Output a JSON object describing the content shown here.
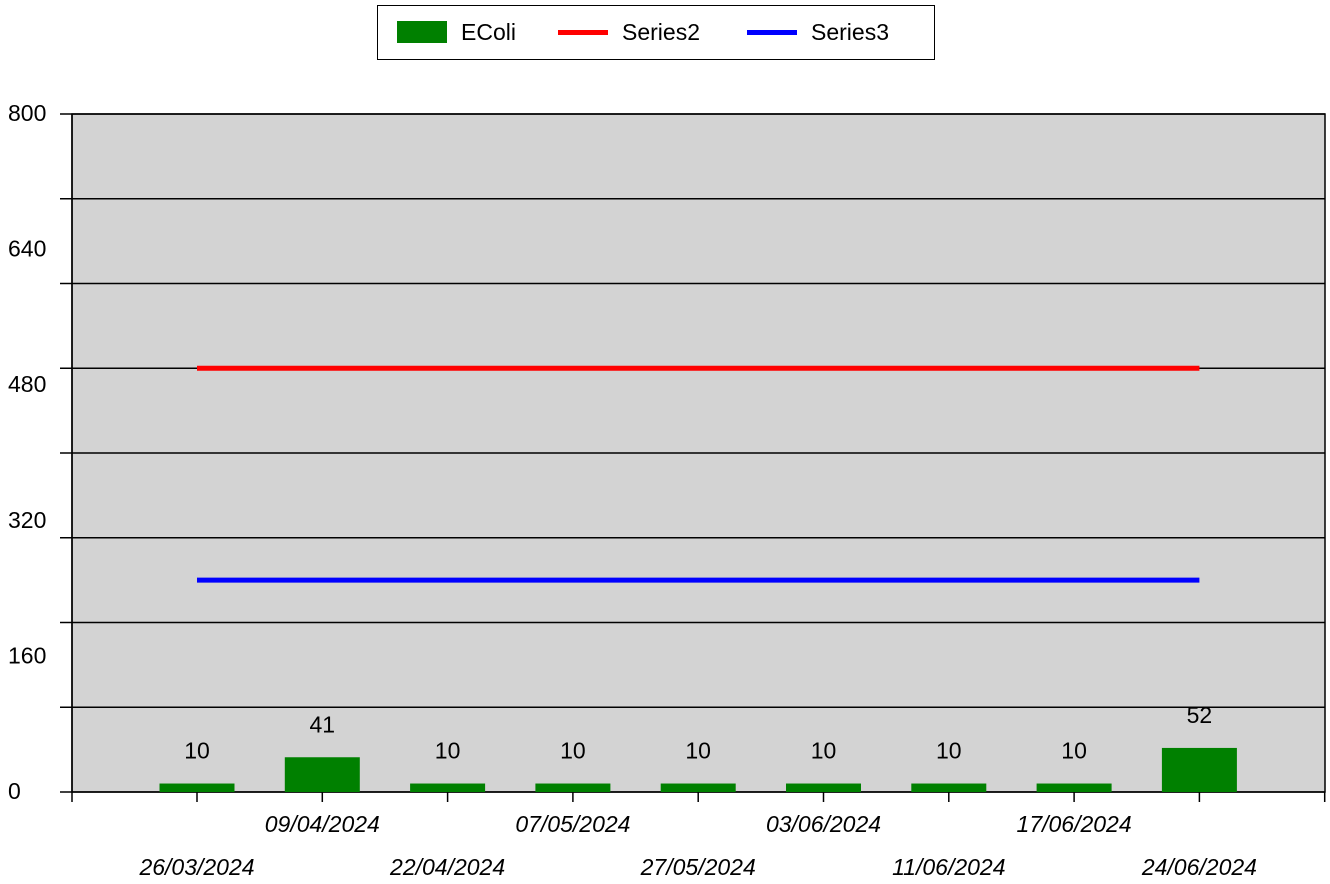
{
  "chart_data": {
    "type": "bar",
    "categories": [
      "26/03/2024",
      "09/04/2024",
      "22/04/2024",
      "07/05/2024",
      "27/05/2024",
      "03/06/2024",
      "11/06/2024",
      "17/06/2024",
      "24/06/2024"
    ],
    "series": [
      {
        "name": "EColi",
        "type": "bar",
        "color": "#008000",
        "values": [
          10,
          41,
          10,
          10,
          10,
          10,
          10,
          10,
          52
        ],
        "data_labels": [
          "10",
          "41",
          "10",
          "10",
          "10",
          "10",
          "10",
          "10",
          "52"
        ]
      },
      {
        "name": "Series2",
        "type": "line",
        "color": "#ff0000",
        "values": [
          500,
          500,
          500,
          500,
          500,
          500,
          500,
          500,
          500
        ]
      },
      {
        "name": "Series3",
        "type": "line",
        "color": "#0000ff",
        "values": [
          250,
          250,
          250,
          250,
          250,
          250,
          250,
          250,
          250
        ]
      }
    ],
    "ylim": [
      0,
      800
    ],
    "yticks": [
      0,
      160,
      320,
      480,
      640,
      800
    ],
    "ytick_labels": [
      "0",
      "160",
      "320",
      "480",
      "640",
      "800"
    ],
    "ygrid": [
      100,
      200,
      300,
      400,
      500,
      600,
      700,
      800
    ],
    "title": "",
    "xlabel": "",
    "ylabel": "",
    "legend_position": "top",
    "plot_background": "#d3d3d3",
    "grid": true
  }
}
